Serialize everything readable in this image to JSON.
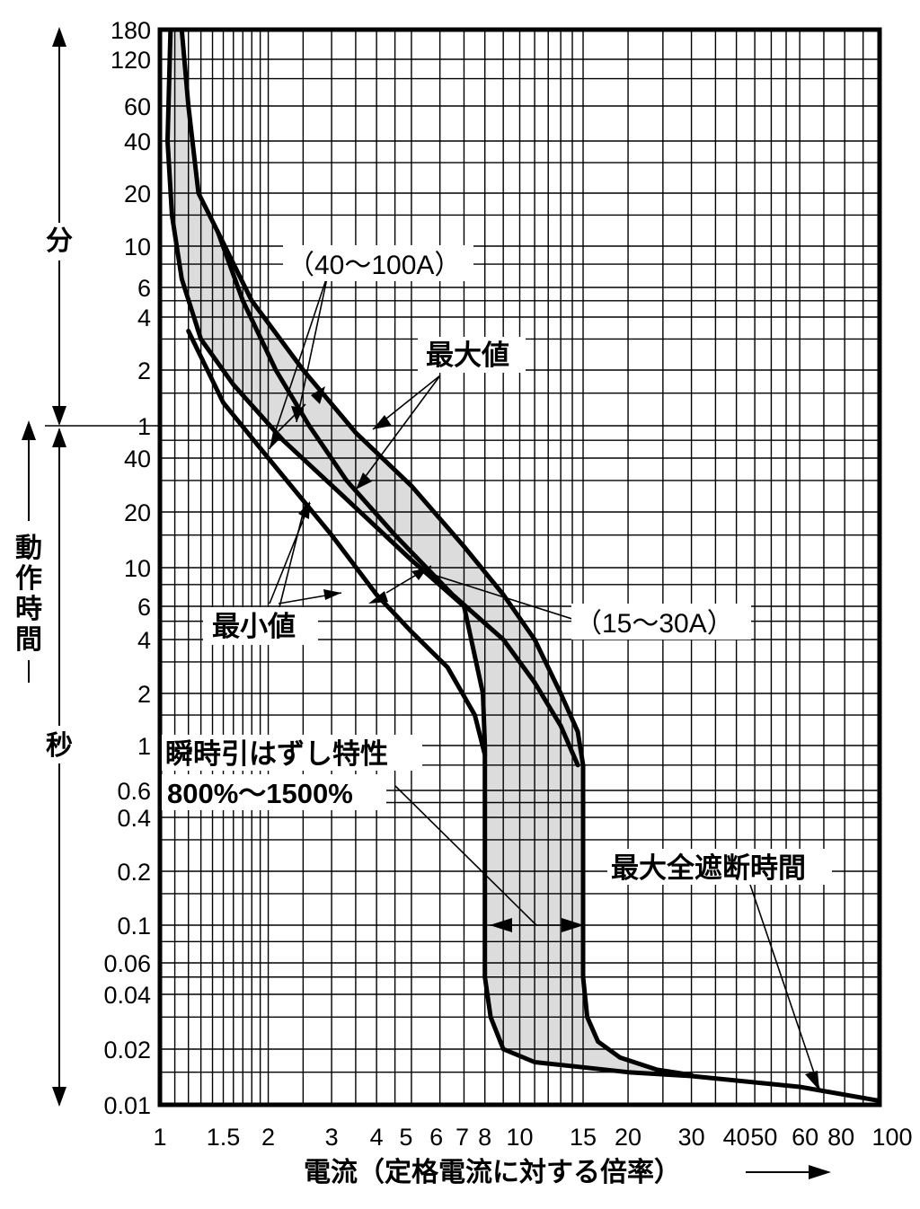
{
  "chart_data": {
    "type": "line",
    "x_scale": "log",
    "y_scale": "log",
    "xlim": [
      1,
      100
    ],
    "ylim_seconds": [
      0.01,
      10800
    ],
    "grid": true,
    "xlabel": "電流（定格電流に対する倍率）",
    "ylabel": "動作時間",
    "y_unit_min": "分",
    "y_unit_sec": "秒",
    "x_ticks": [
      {
        "v": 1,
        "label": "1"
      },
      {
        "v": 1.5,
        "label": "1.5"
      },
      {
        "v": 2,
        "label": "2"
      },
      {
        "v": 3,
        "label": "3"
      },
      {
        "v": 4,
        "label": "4"
      },
      {
        "v": 5,
        "label": "5"
      },
      {
        "v": 6,
        "label": "6"
      },
      {
        "v": 7,
        "label": "7"
      },
      {
        "v": 8,
        "label": "8"
      },
      {
        "v": 10,
        "label": "10"
      },
      {
        "v": 15,
        "label": "15"
      },
      {
        "v": 20,
        "label": "20"
      },
      {
        "v": 30,
        "label": "30"
      },
      {
        "v": 40,
        "label": "40"
      },
      {
        "v": 50,
        "label": "50"
      },
      {
        "v": 60,
        "label": "60"
      },
      {
        "v": 80,
        "label": "80"
      },
      {
        "v": 100,
        "label": "100"
      }
    ],
    "y_ticks": [
      {
        "sec": 10800,
        "label": "180"
      },
      {
        "sec": 7200,
        "label": "120"
      },
      {
        "sec": 3600,
        "label": "60"
      },
      {
        "sec": 2400,
        "label": "40"
      },
      {
        "sec": 1200,
        "label": "20"
      },
      {
        "sec": 600,
        "label": "10"
      },
      {
        "sec": 360,
        "label": "6"
      },
      {
        "sec": 240,
        "label": "4"
      },
      {
        "sec": 120,
        "label": "2"
      },
      {
        "sec": 60,
        "label": "1"
      },
      {
        "sec": 40,
        "label": "40"
      },
      {
        "sec": 20,
        "label": "20"
      },
      {
        "sec": 10,
        "label": "10"
      },
      {
        "sec": 6,
        "label": "6"
      },
      {
        "sec": 4,
        "label": "4"
      },
      {
        "sec": 2,
        "label": "2"
      },
      {
        "sec": 1,
        "label": "1"
      },
      {
        "sec": 0.6,
        "label": "0.6"
      },
      {
        "sec": 0.4,
        "label": "0.4"
      },
      {
        "sec": 0.2,
        "label": "0.2"
      },
      {
        "sec": 0.1,
        "label": "0.1"
      },
      {
        "sec": 0.06,
        "label": "0.06"
      },
      {
        "sec": 0.04,
        "label": "0.04"
      },
      {
        "sec": 0.02,
        "label": "0.02"
      },
      {
        "sec": 0.01,
        "label": "0.01"
      }
    ],
    "series": [
      {
        "role": "max-40-100A",
        "points": [
          [
            1.15,
            10800
          ],
          [
            1.2,
            3600
          ],
          [
            1.28,
            1200
          ],
          [
            1.45,
            720
          ],
          [
            1.8,
            300
          ],
          [
            2.5,
            120
          ],
          [
            3.5,
            55
          ],
          [
            5,
            28
          ],
          [
            7,
            13
          ],
          [
            9,
            7
          ],
          [
            11,
            4
          ],
          [
            13,
            2
          ],
          [
            14.5,
            1.2
          ],
          [
            15,
            0.8
          ]
        ]
      },
      {
        "role": "max-15-30A",
        "points": [
          [
            1.45,
            720
          ],
          [
            1.7,
            300
          ],
          [
            2.1,
            120
          ],
          [
            2.6,
            60
          ],
          [
            3.3,
            30
          ],
          [
            4.5,
            15
          ],
          [
            6.5,
            7
          ],
          [
            9,
            4
          ],
          [
            11,
            2.3
          ],
          [
            13,
            1.3
          ],
          [
            14.5,
            0.8
          ]
        ]
      },
      {
        "role": "min-15-30A",
        "points": [
          [
            1.07,
            10800
          ],
          [
            1.05,
            2400
          ],
          [
            1.08,
            900
          ],
          [
            1.15,
            400
          ],
          [
            1.3,
            180
          ],
          [
            1.6,
            100
          ],
          [
            2.2,
            50
          ],
          [
            3.2,
            25
          ],
          [
            5,
            11
          ],
          [
            7,
            6
          ],
          [
            7.9,
            2
          ],
          [
            8,
            1
          ],
          [
            8,
            0.05
          ]
        ]
      },
      {
        "role": "min-40-100A",
        "points": [
          [
            1.2,
            200
          ],
          [
            1.5,
            80
          ],
          [
            2,
            40
          ],
          [
            3,
            15
          ],
          [
            4,
            7
          ],
          [
            5,
            4.4
          ],
          [
            6.3,
            2.8
          ],
          [
            7.5,
            1.5
          ],
          [
            8,
            0.9
          ]
        ]
      },
      {
        "role": "interrupt-time",
        "points": [
          [
            8,
            0.05
          ],
          [
            8.3,
            0.03
          ],
          [
            9,
            0.02
          ],
          [
            11,
            0.017
          ],
          [
            20,
            0.015
          ],
          [
            30,
            0.0143
          ],
          [
            60,
            0.0125
          ],
          [
            100,
            0.0105
          ]
        ]
      },
      {
        "role": "interrupt-time-max",
        "points": [
          [
            15,
            0.8
          ],
          [
            15,
            0.05
          ],
          [
            15.4,
            0.03
          ],
          [
            16.5,
            0.022
          ],
          [
            19,
            0.018
          ],
          [
            24,
            0.0155
          ],
          [
            30,
            0.0145
          ]
        ]
      }
    ],
    "annotations": {
      "range_large": "（40〜100A）",
      "range_small": "（15〜30A）",
      "max_value": "最大値",
      "min_value": "最小値",
      "instant_trip": "瞬時引はずし特性",
      "instant_trip_range": "800%〜1500%",
      "max_interrupt": "最大全遮断時間"
    }
  }
}
